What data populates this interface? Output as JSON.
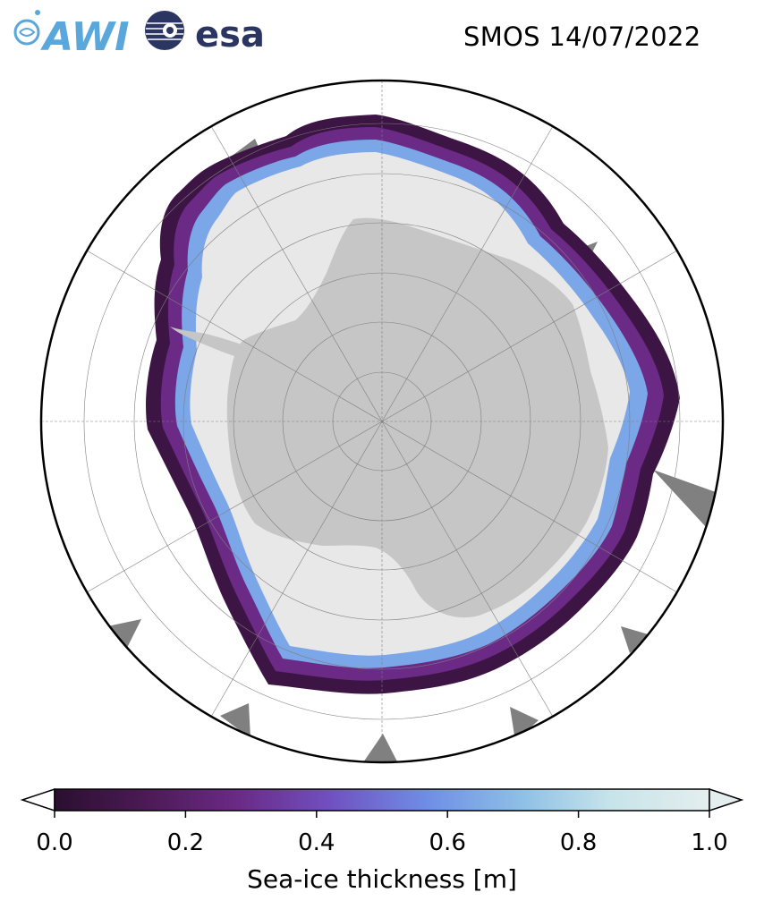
{
  "header": {
    "title": "SMOS 14/07/2022",
    "logo_left_text": "AWI",
    "logo_right_text": "esa"
  },
  "map": {
    "projection": "south-polar-stereographic",
    "land_color": "#c6c6c6",
    "thick_ice_color": "#e8e8e8",
    "ocean_color": "#ffffff",
    "no_data_color": "#808080",
    "graticule_color": "#7f7f7f"
  },
  "colorbar": {
    "label": "Sea-ice thickness [m]",
    "ticks": [
      "0.0",
      "0.2",
      "0.4",
      "0.6",
      "0.8",
      "1.0"
    ],
    "min": 0.0,
    "max": 1.0,
    "extend": "both",
    "colormap": [
      "#2a0f2f",
      "#4c1a55",
      "#6a2a86",
      "#7050c0",
      "#6f8ee6",
      "#8cbfe6",
      "#c7e4ea",
      "#e4eeee"
    ]
  }
}
